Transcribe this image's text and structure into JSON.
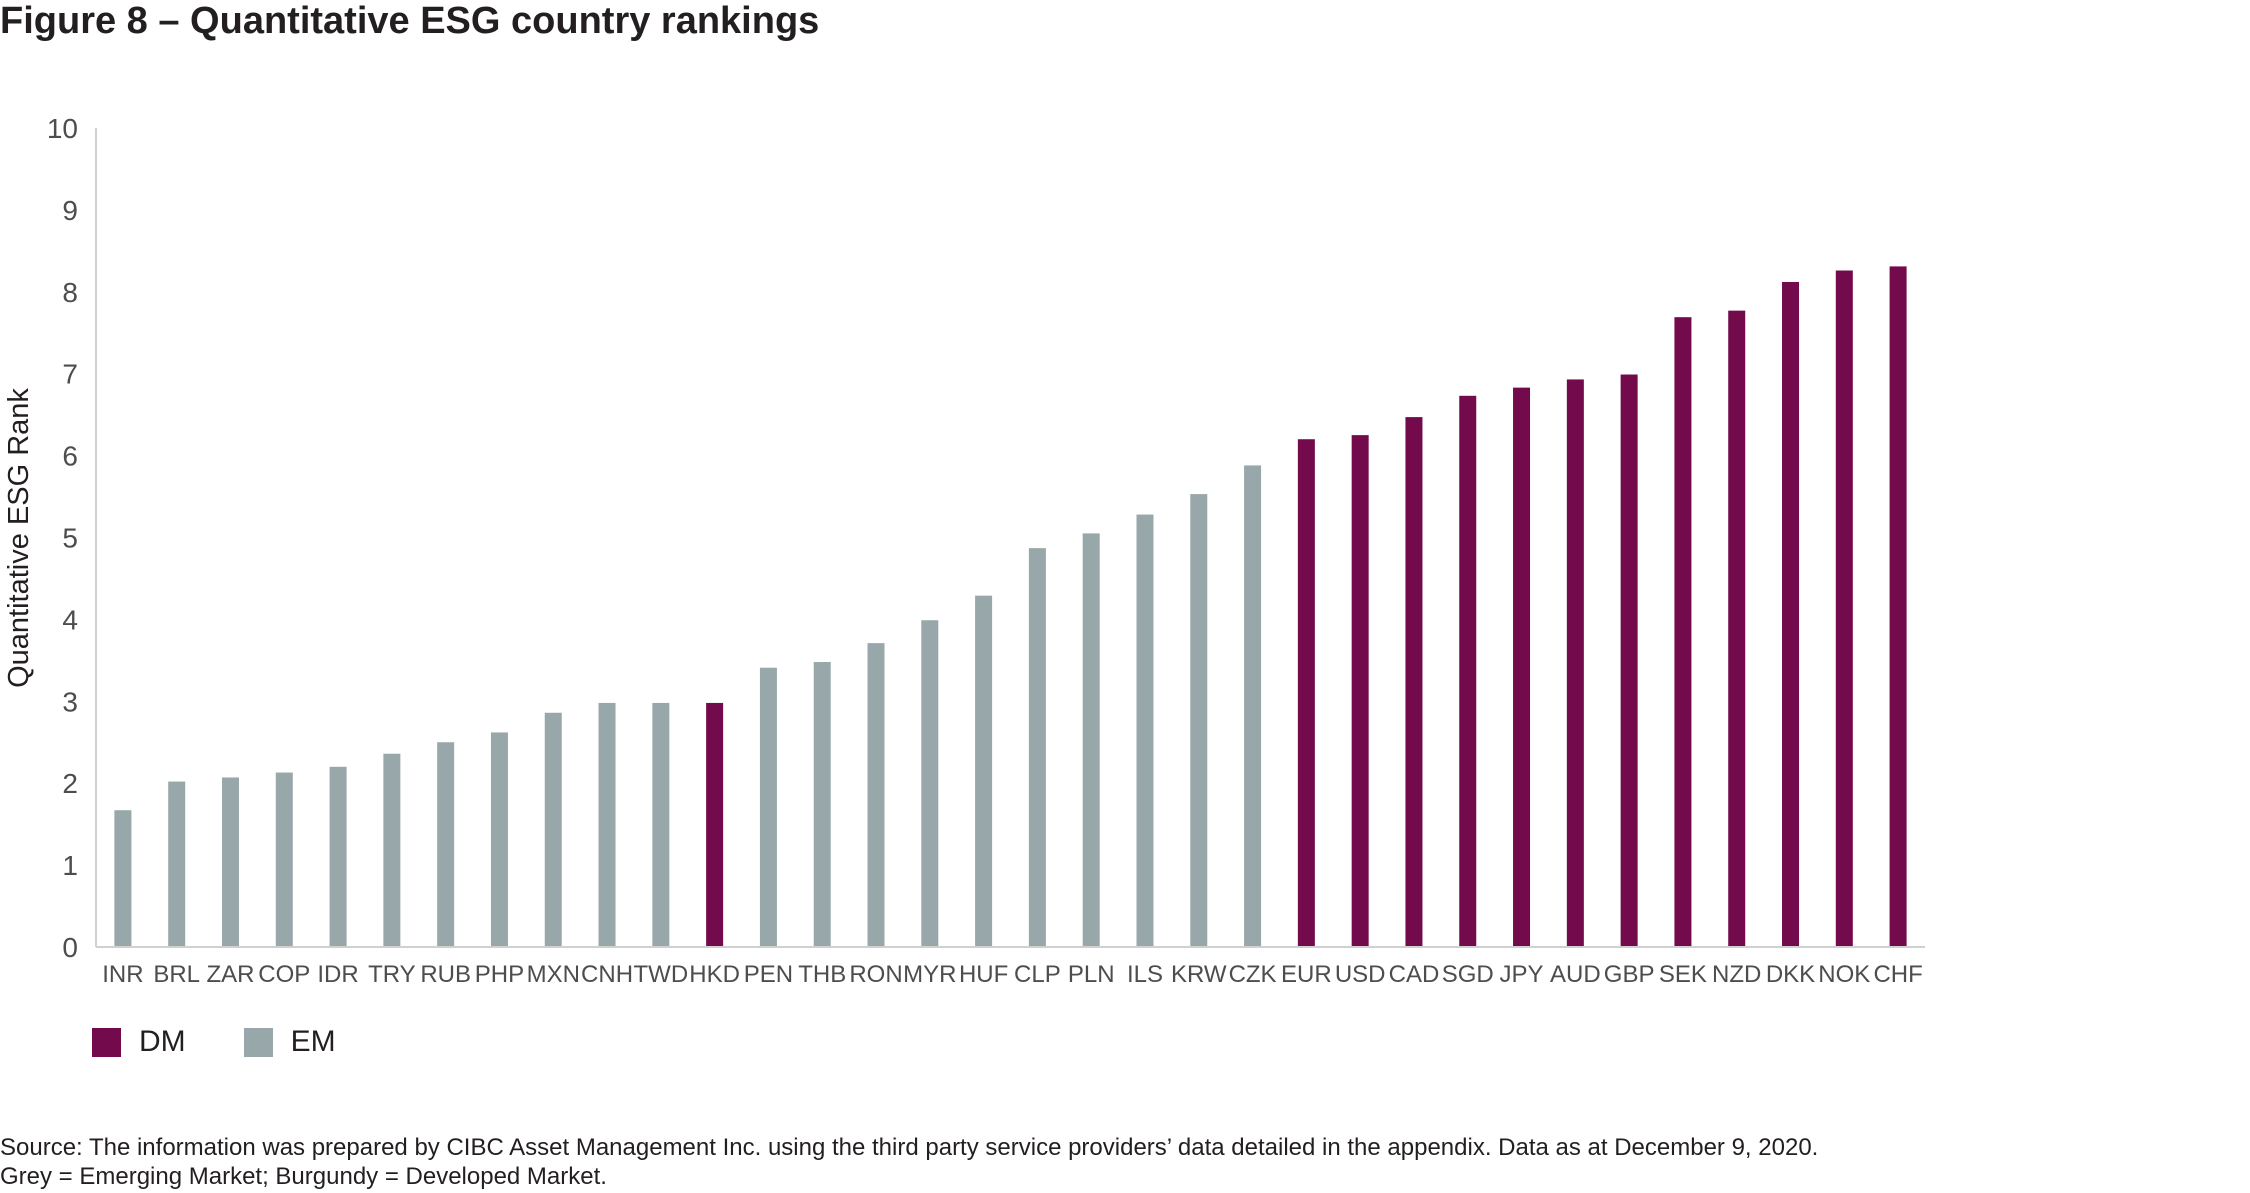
{
  "title": "Figure 8 – Quantitative ESG country rankings",
  "legend": {
    "dm_label": "DM",
    "em_label": "EM"
  },
  "source": {
    "line1": "Source: The information was prepared by CIBC Asset Management Inc. using the third party service providers’ data detailed in the appendix. Data as at December 9, 2020.",
    "line2": "Grey = Emerging Market; Burgundy = Developed Market."
  },
  "colors": {
    "DM": "#720a4c",
    "EM": "#98a7a9",
    "axis": "#d0d0d0"
  },
  "chart_data": {
    "type": "bar",
    "title": "Figure 8 – Quantitative ESG country rankings",
    "xlabel": "",
    "ylabel": "Quantitative ESG Rank",
    "ylim": [
      0,
      10
    ],
    "yticks": [
      0,
      1,
      2,
      3,
      4,
      5,
      6,
      7,
      8,
      9,
      10
    ],
    "grid": false,
    "legend_position": "bottom-left",
    "categories": [
      "INR",
      "BRL",
      "ZAR",
      "COP",
      "IDR",
      "TRY",
      "RUB",
      "PHP",
      "MXN",
      "CNH",
      "TWD",
      "HKD",
      "PEN",
      "THB",
      "RON",
      "MYR",
      "HUF",
      "CLP",
      "PLN",
      "ILS",
      "KRW",
      "CZK",
      "EUR",
      "USD",
      "CAD",
      "SGD",
      "JPY",
      "AUD",
      "GBP",
      "SEK",
      "NZD",
      "DKK",
      "NOK",
      "CHF"
    ],
    "values": [
      1.67,
      2.02,
      2.07,
      2.13,
      2.2,
      2.36,
      2.5,
      2.62,
      2.86,
      2.98,
      2.98,
      2.98,
      3.41,
      3.48,
      3.71,
      3.99,
      4.29,
      4.87,
      5.05,
      5.28,
      5.53,
      5.88,
      6.2,
      6.25,
      6.47,
      6.73,
      6.83,
      6.93,
      6.99,
      7.69,
      7.77,
      8.12,
      8.26,
      8.31
    ],
    "groups": [
      "EM",
      "EM",
      "EM",
      "EM",
      "EM",
      "EM",
      "EM",
      "EM",
      "EM",
      "EM",
      "EM",
      "DM",
      "EM",
      "EM",
      "EM",
      "EM",
      "EM",
      "EM",
      "EM",
      "EM",
      "EM",
      "EM",
      "DM",
      "DM",
      "DM",
      "DM",
      "DM",
      "DM",
      "DM",
      "DM",
      "DM",
      "DM",
      "DM",
      "DM"
    ]
  }
}
